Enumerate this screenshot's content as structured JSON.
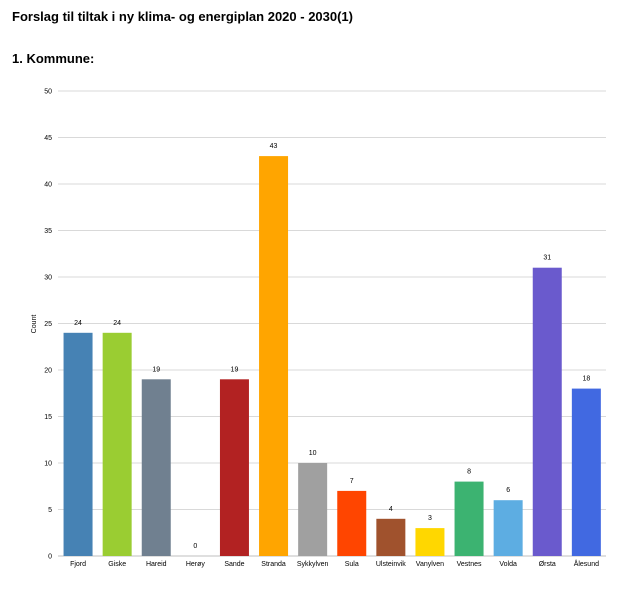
{
  "page": {
    "title": "Forslag til tiltak i ny klima- og energiplan 2020 - 2030(1)",
    "section": "1. Kommune:"
  },
  "chart_data": {
    "type": "bar",
    "title": "",
    "xlabel": "",
    "ylabel": "Count",
    "ylim": [
      0,
      50
    ],
    "yticks": [
      0,
      5,
      10,
      15,
      20,
      25,
      30,
      35,
      40,
      45,
      50
    ],
    "grid": true,
    "legend": "none",
    "categories": [
      "Fjord",
      "Giske",
      "Hareid",
      "Herøy",
      "Sande",
      "Stranda",
      "Sykkylven",
      "Sula",
      "Ulsteinvik",
      "Vanylven",
      "Vestnes",
      "Volda",
      "Ørsta",
      "Ålesund"
    ],
    "values": [
      24,
      24,
      19,
      0,
      19,
      43,
      10,
      7,
      4,
      3,
      8,
      6,
      31,
      18
    ],
    "colors": [
      "#4682B4",
      "#9ACD32",
      "#708090",
      "#808080",
      "#B22222",
      "#FFA500",
      "#A0A0A0",
      "#FF4500",
      "#A0522D",
      "#FFD700",
      "#3CB371",
      "#5DADE2",
      "#6A5ACD",
      "#4169E1"
    ]
  }
}
